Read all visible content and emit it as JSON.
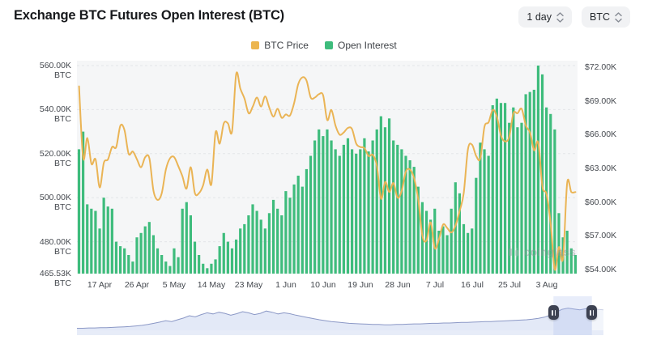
{
  "header": {
    "title": "Exchange BTC Futures Open Interest (BTC)",
    "interval_selector": "1 day",
    "asset_selector": "BTC"
  },
  "legend": [
    {
      "label": "BTC Price",
      "color": "#ecb54e"
    },
    {
      "label": "Open Interest",
      "color": "#3ebc7c"
    }
  ],
  "watermark": "coinglass",
  "chart_data": {
    "type": "bar",
    "overlay_type": "line",
    "title": "Exchange BTC Futures Open Interest (BTC)",
    "x_unit": "day",
    "x_start": "12 Apr",
    "x_end": "10 Aug",
    "x_tick_labels": [
      "17 Apr",
      "26 Apr",
      "5 May",
      "14 May",
      "23 May",
      "1 Jun",
      "10 Jun",
      "19 Jun",
      "28 Jun",
      "7 Jul",
      "16 Jul",
      "25 Jul",
      "3 Aug"
    ],
    "x_tick_indices": [
      5,
      14,
      23,
      32,
      41,
      50,
      59,
      68,
      77,
      86,
      95,
      104,
      113
    ],
    "grid": "horizontal-dashed",
    "legend_position": "top-center",
    "left_axis": {
      "name": "Open Interest",
      "unit": "K BTC",
      "min": 465.53,
      "max": 560,
      "tick_labels": [
        "560.00K BTC",
        "540.00K BTC",
        "520.00K BTC",
        "500.00K BTC",
        "480.00K BTC",
        "465.53K BTC"
      ],
      "tick_values": [
        560,
        540,
        520,
        500,
        480,
        465.53
      ]
    },
    "right_axis": {
      "name": "BTC Price",
      "unit": "$K",
      "min": 54,
      "max": 72,
      "tick_labels": [
        "$72.00K",
        "$69.00K",
        "$66.00K",
        "$63.00K",
        "$60.00K",
        "$57.00K",
        "$54.00K"
      ],
      "tick_values": [
        72,
        69,
        66,
        63,
        60,
        57,
        54
      ]
    },
    "series": [
      {
        "name": "Open Interest",
        "type": "bar",
        "axis": "left",
        "unit": "K BTC",
        "color": "#3ebc7c",
        "values": [
          522,
          530,
          497,
          495,
          494,
          486,
          500,
          496,
          495,
          480,
          478,
          477,
          474,
          471,
          482,
          484,
          487,
          489,
          483,
          477,
          474,
          471,
          469,
          477,
          473,
          495,
          498,
          492,
          480,
          474,
          470,
          468,
          470,
          472,
          478,
          484,
          480,
          477,
          481,
          486,
          488,
          492,
          497,
          494,
          490,
          486,
          493,
          499,
          495,
          492,
          503,
          500,
          506,
          510,
          505,
          513,
          519,
          526,
          531,
          528,
          531,
          526,
          522,
          519,
          524,
          527,
          522,
          520,
          522,
          527,
          521,
          526,
          531,
          537,
          532,
          536,
          526,
          524,
          522,
          519,
          517,
          514,
          505,
          498,
          494,
          490,
          495,
          485,
          487,
          483,
          495,
          507,
          502,
          488,
          484,
          486,
          509,
          525,
          522,
          519,
          542,
          545,
          543,
          543,
          534,
          541,
          532,
          534,
          547,
          548,
          549,
          560,
          556,
          541,
          538,
          531,
          493,
          482,
          485,
          477,
          474
        ]
      },
      {
        "name": "BTC Price",
        "type": "line",
        "axis": "right",
        "unit": "$K",
        "color": "#eab455",
        "values": [
          70.3,
          63.9,
          65.7,
          63.4,
          63.8,
          61.3,
          63.5,
          63.8,
          64.9,
          64.9,
          66.8,
          66.4,
          64.3,
          64.5,
          63.8,
          63.1,
          64.0,
          63.9,
          61.0,
          60.2,
          60.8,
          62.9,
          63.9,
          64.0,
          63.2,
          62.3,
          61.2,
          63.1,
          60.8,
          60.8,
          61.5,
          62.9,
          61.6,
          66.2,
          65.2,
          67.0,
          67.0,
          66.3,
          71.4,
          70.1,
          69.2,
          67.9,
          68.5,
          69.3,
          68.5,
          69.4,
          68.4,
          67.6,
          68.3,
          67.5,
          67.8,
          67.7,
          68.8,
          70.5,
          71.1,
          70.8,
          69.3,
          69.3,
          69.6,
          69.5,
          67.3,
          68.2,
          66.8,
          66.0,
          66.2,
          66.6,
          66.5,
          65.2,
          64.9,
          64.8,
          64.1,
          64.2,
          63.2,
          60.3,
          61.8,
          60.9,
          61.7,
          60.4,
          61.0,
          62.7,
          62.9,
          62.1,
          60.2,
          57.0,
          56.6,
          58.2,
          55.9,
          56.7,
          58.0,
          57.7,
          57.3,
          57.9,
          59.2,
          60.8,
          64.7,
          65.1,
          64.1,
          63.9,
          66.7,
          67.1,
          68.2,
          67.6,
          65.9,
          65.4,
          65.8,
          67.9,
          67.9,
          68.3,
          66.8,
          66.2,
          64.6,
          65.3,
          61.4,
          60.7,
          58.1,
          54.0,
          56.0,
          55.0,
          61.7,
          60.9,
          60.9
        ]
      }
    ]
  },
  "navigator": {
    "values": [
      7,
      7,
      8,
      8,
      9,
      9,
      10,
      11,
      12,
      13,
      15,
      17,
      20,
      24,
      28,
      33,
      30,
      36,
      42,
      50,
      46,
      54,
      60,
      56,
      62,
      58,
      52,
      57,
      64,
      60,
      54,
      58,
      66,
      62,
      56,
      60,
      57,
      52,
      48,
      44,
      40,
      36,
      33,
      30,
      28,
      26,
      24,
      23,
      22,
      21,
      20,
      20,
      19,
      19,
      20,
      20,
      21,
      22,
      22,
      23,
      24,
      24,
      25,
      25,
      26,
      27,
      27,
      28,
      29,
      30,
      30,
      31,
      32,
      33,
      34,
      35,
      36,
      38,
      41,
      45,
      52,
      62,
      72,
      76,
      73,
      70,
      74,
      76,
      72,
      70
    ],
    "selection_start": 0.905,
    "selection_end": 0.978
  }
}
